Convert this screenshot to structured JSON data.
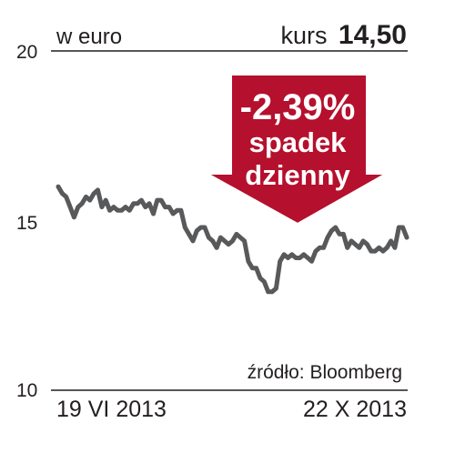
{
  "chart_data": {
    "type": "line",
    "unit_label": "w euro",
    "price_label": "kurs",
    "price_value": "14,50",
    "badge": {
      "change": "-2,39%",
      "line1": "spadek",
      "line2": "dzienny",
      "color": "#b5102d"
    },
    "source": "źródło: Bloomberg",
    "x_start_label": "19 VI 2013",
    "x_end_label": "22 X 2013",
    "ylim": [
      10,
      20
    ],
    "yticks": [
      "10",
      "15",
      "20"
    ],
    "line_color": "#58595b",
    "grid": false,
    "values": [
      16.0,
      15.8,
      15.7,
      15.4,
      15.1,
      15.4,
      15.5,
      15.7,
      15.6,
      15.8,
      15.9,
      15.4,
      15.6,
      15.3,
      15.4,
      15.3,
      15.3,
      15.4,
      15.3,
      15.5,
      15.5,
      15.6,
      15.4,
      15.5,
      15.2,
      15.6,
      15.6,
      15.4,
      15.4,
      15.2,
      15.3,
      15.3,
      14.8,
      14.6,
      14.4,
      14.7,
      14.8,
      14.8,
      14.5,
      14.4,
      14.2,
      14.5,
      14.4,
      14.3,
      14.4,
      14.6,
      14.5,
      14.4,
      13.8,
      13.6,
      13.6,
      13.3,
      13.2,
      12.9,
      12.9,
      13.0,
      13.8,
      14.0,
      13.9,
      14.0,
      13.9,
      13.9,
      14.0,
      13.9,
      13.8,
      14.1,
      14.2,
      14.2,
      14.5,
      14.7,
      14.8,
      14.6,
      14.6,
      14.2,
      14.4,
      14.3,
      14.2,
      14.4,
      14.3,
      14.1,
      14.1,
      14.2,
      14.1,
      14.2,
      14.4,
      14.2,
      14.8,
      14.8,
      14.5
    ]
  }
}
